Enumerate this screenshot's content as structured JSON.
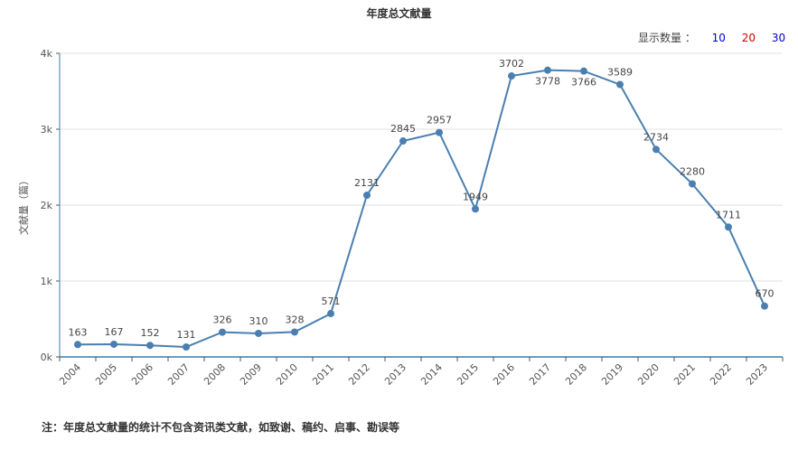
{
  "chart_data": {
    "type": "line",
    "title": "年度总文献量",
    "ylabel": "文献量（篇）",
    "xlabel": "",
    "ylim": [
      0,
      4000
    ],
    "yticks": [
      {
        "value": 0,
        "label": "0k"
      },
      {
        "value": 1000,
        "label": "1k"
      },
      {
        "value": 2000,
        "label": "2k"
      },
      {
        "value": 3000,
        "label": "3k"
      },
      {
        "value": 4000,
        "label": "4k"
      }
    ],
    "grid": true,
    "line_color": "#4a7fb0",
    "categories": [
      "2004",
      "2005",
      "2006",
      "2007",
      "2008",
      "2009",
      "2010",
      "2011",
      "2012",
      "2013",
      "2014",
      "2015",
      "2016",
      "2017",
      "2018",
      "2019",
      "2020",
      "2021",
      "2022",
      "2023"
    ],
    "values": [
      163,
      167,
      152,
      131,
      326,
      310,
      328,
      571,
      2131,
      2845,
      2957,
      1949,
      3702,
      3778,
      3766,
      3589,
      2734,
      2280,
      1711,
      670
    ],
    "label_below": [
      "2017",
      "2018"
    ]
  },
  "controls": {
    "display_label": "显示数量 ：",
    "options": [
      {
        "label": "10",
        "color": "#0000cc"
      },
      {
        "label": "20",
        "color": "#cc0000"
      },
      {
        "label": "30",
        "color": "#0000cc"
      }
    ]
  },
  "footnote": "注：年度总文献量的统计不包含资讯类文献，如致谢、稿约、启事、勘误等"
}
